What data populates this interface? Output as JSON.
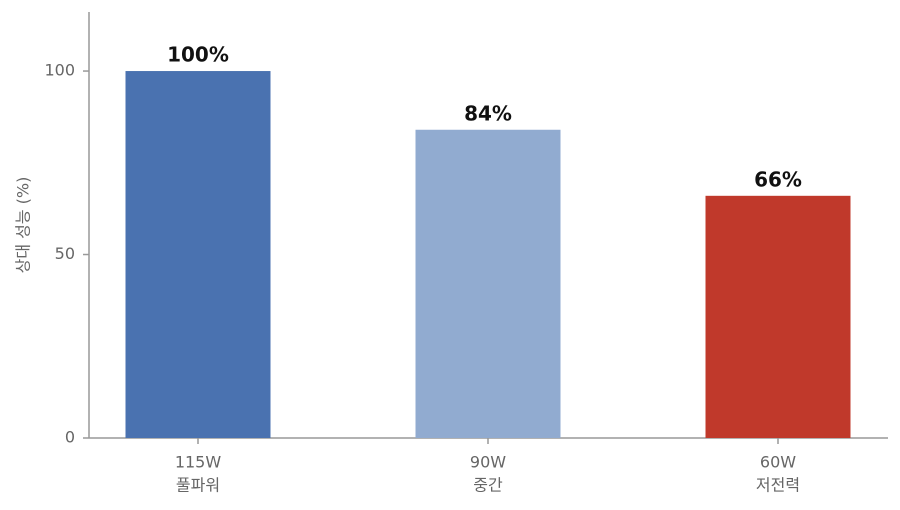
{
  "chart_data": {
    "type": "bar",
    "categories": [
      [
        "115W",
        "풀파워"
      ],
      [
        "90W",
        "중간"
      ],
      [
        "60W",
        "저전력"
      ]
    ],
    "values": [
      100,
      84,
      66
    ],
    "value_labels": [
      "100%",
      "84%",
      "66%"
    ],
    "colors": [
      "#4a72b0",
      "#91abd0",
      "#c0392b"
    ],
    "ylabel": "상대 성능 (%)",
    "ylim": [
      0,
      115
    ],
    "yticks": [
      0,
      50,
      100
    ]
  }
}
